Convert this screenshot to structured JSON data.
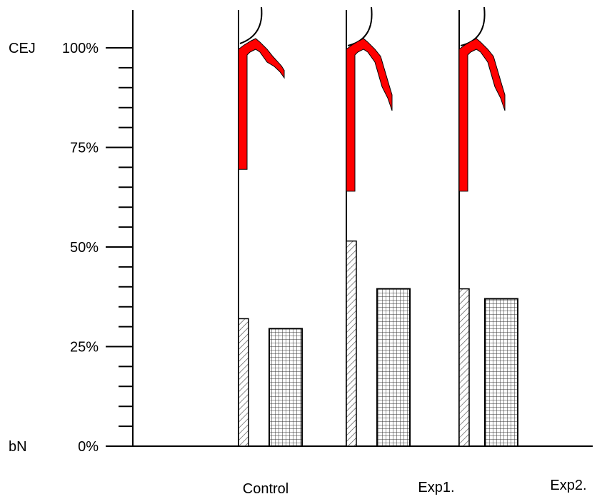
{
  "chart_data": {
    "type": "bar",
    "ylim": [
      0,
      100
    ],
    "y_ticks": [
      {
        "value": 0,
        "label": "0%"
      },
      {
        "value": 25,
        "label": "25%"
      },
      {
        "value": 50,
        "label": "50%"
      },
      {
        "value": 75,
        "label": "75%"
      },
      {
        "value": 100,
        "label": "100%"
      }
    ],
    "y_minor_step": 5,
    "side_labels": [
      {
        "value": 100,
        "label": "CEJ"
      },
      {
        "value": 0,
        "label": "bN"
      }
    ],
    "categories": [
      "Control",
      "Exp1.",
      "Exp2."
    ],
    "groups": [
      {
        "category": "Control",
        "hatched_value": 32,
        "grid_value": 29.5,
        "red_band": [
          69.5,
          100
        ]
      },
      {
        "category": "Exp1.",
        "hatched_value": 51.5,
        "grid_value": 39.5,
        "red_band": [
          64,
          100
        ]
      },
      {
        "category": "Exp2.",
        "hatched_value": 39.5,
        "grid_value": 37,
        "red_band": [
          64,
          100
        ]
      }
    ],
    "colors": {
      "band": "#ff0000",
      "outline": "#000000",
      "hatch": "#555555",
      "grid": "#333333"
    },
    "grid": false,
    "legend": "none"
  }
}
